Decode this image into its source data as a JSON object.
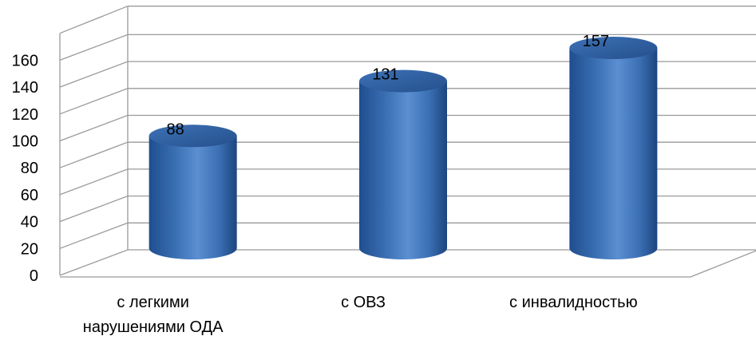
{
  "chart_data": {
    "type": "bar",
    "style": "3d-cylinder",
    "categories": [
      "с легкими нарушениями ОДА",
      "с ОВЗ",
      "с инвалидностью"
    ],
    "category_lines": [
      [
        "с легкими",
        "нарушениями ОДА"
      ],
      [
        "с ОВЗ"
      ],
      [
        "с инвалидностью"
      ]
    ],
    "values": [
      88,
      131,
      157
    ],
    "data_labels": [
      "88",
      "131",
      "157"
    ],
    "y_ticks": [
      "0",
      "20",
      "40",
      "60",
      "80",
      "100",
      "120",
      "140",
      "160"
    ],
    "ylim": [
      0,
      160
    ],
    "grid": true,
    "legend": false,
    "colors": {
      "bar": "#4a7ebb",
      "bar_dark": "#1f4e8f",
      "bar_top": "#2f5f9f",
      "grid": "#9a9a9a"
    }
  }
}
